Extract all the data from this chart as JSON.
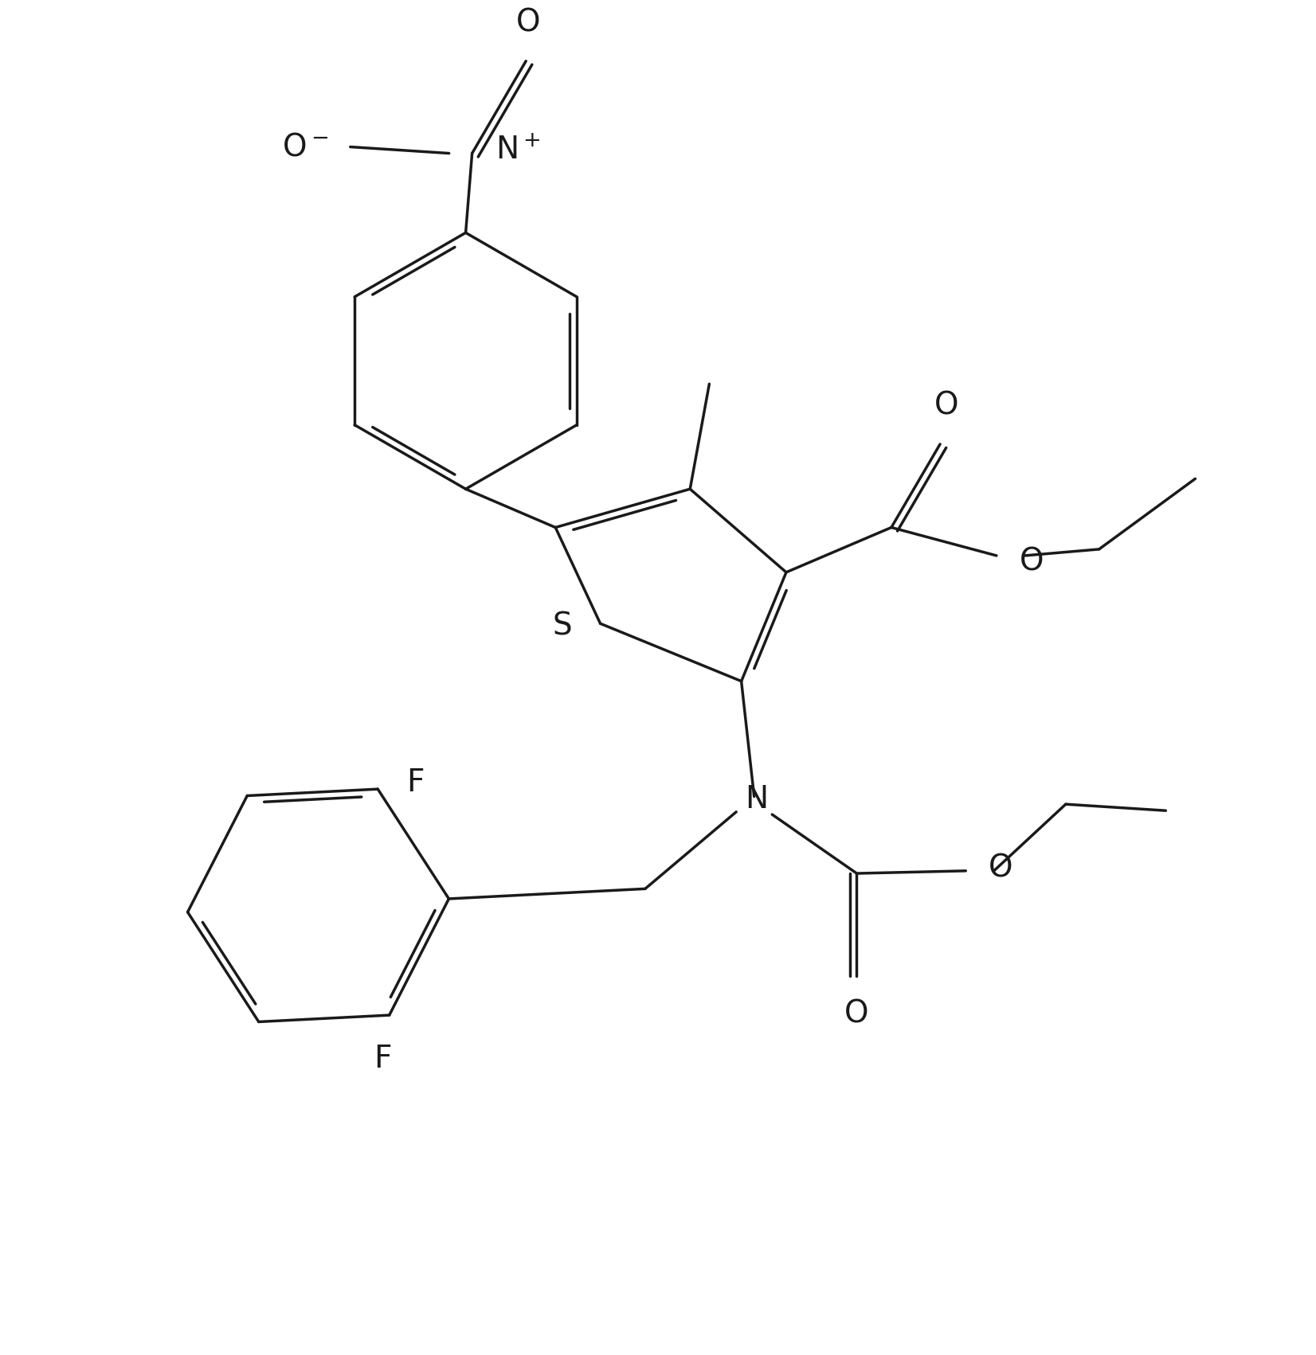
{
  "background_color": "#ffffff",
  "line_color": "#1a1a1a",
  "line_width": 2.5,
  "font_size": 28,
  "dbo": 0.055,
  "shorten": 0.13,
  "fig_width": 16.52,
  "fig_height": 17.02,
  "xlim": [
    0,
    10
  ],
  "ylim": [
    0,
    10.5
  ]
}
